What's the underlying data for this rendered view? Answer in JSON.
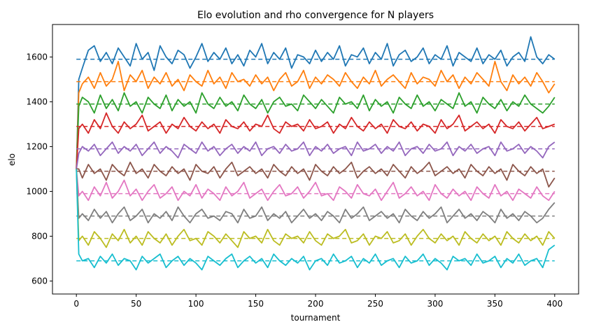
{
  "chart_data": {
    "type": "line",
    "title": "Elo evolution and rho convergence for N players",
    "xlabel": "tournament",
    "ylabel": "elo",
    "xlim": [
      -20,
      420
    ],
    "ylim": [
      542,
      1745
    ],
    "xticks": [
      0,
      50,
      100,
      150,
      200,
      250,
      300,
      350,
      400
    ],
    "yticks": [
      600,
      800,
      1000,
      1200,
      1400,
      1600
    ],
    "grid": false,
    "legend": "none",
    "start_value": 1100,
    "x": [
      0,
      2,
      5,
      10,
      15,
      20,
      25,
      30,
      35,
      40,
      45,
      50,
      55,
      60,
      65,
      70,
      75,
      80,
      85,
      90,
      95,
      100,
      105,
      110,
      115,
      120,
      125,
      130,
      135,
      140,
      145,
      150,
      155,
      160,
      165,
      170,
      175,
      180,
      185,
      190,
      195,
      200,
      205,
      210,
      215,
      220,
      225,
      230,
      235,
      240,
      245,
      250,
      255,
      260,
      265,
      270,
      275,
      280,
      285,
      290,
      295,
      300,
      305,
      310,
      315,
      320,
      325,
      330,
      335,
      340,
      345,
      350,
      355,
      360,
      365,
      370,
      375,
      380,
      385,
      390,
      395,
      400
    ],
    "series": [
      {
        "color": "#1f77b4",
        "equilibrium": 1590,
        "values": [
          1100,
          1500,
          1550,
          1630,
          1650,
          1580,
          1620,
          1570,
          1640,
          1600,
          1560,
          1660,
          1590,
          1620,
          1540,
          1650,
          1600,
          1570,
          1630,
          1610,
          1550,
          1600,
          1660,
          1580,
          1620,
          1590,
          1640,
          1570,
          1610,
          1560,
          1630,
          1600,
          1660,
          1570,
          1620,
          1590,
          1640,
          1550,
          1610,
          1600,
          1570,
          1630,
          1580,
          1620,
          1590,
          1650,
          1560,
          1610,
          1600,
          1640,
          1570,
          1620,
          1590,
          1660,
          1560,
          1610,
          1630,
          1580,
          1600,
          1640,
          1570,
          1610,
          1590,
          1650,
          1560,
          1620,
          1600,
          1580,
          1640,
          1570,
          1610,
          1590,
          1630,
          1560,
          1600,
          1620,
          1580,
          1690,
          1600,
          1570,
          1610,
          1590
        ]
      },
      {
        "color": "#ff7f0e",
        "equilibrium": 1490,
        "values": [
          1100,
          1440,
          1480,
          1510,
          1460,
          1530,
          1470,
          1500,
          1580,
          1450,
          1520,
          1490,
          1540,
          1460,
          1510,
          1480,
          1530,
          1470,
          1500,
          1450,
          1520,
          1490,
          1470,
          1540,
          1480,
          1510,
          1460,
          1530,
          1490,
          1500,
          1470,
          1520,
          1480,
          1510,
          1450,
          1500,
          1530,
          1470,
          1490,
          1540,
          1460,
          1510,
          1480,
          1520,
          1500,
          1470,
          1530,
          1490,
          1460,
          1510,
          1480,
          1540,
          1470,
          1500,
          1520,
          1490,
          1460,
          1530,
          1480,
          1510,
          1500,
          1470,
          1540,
          1490,
          1520,
          1460,
          1510,
          1480,
          1530,
          1500,
          1470,
          1580,
          1490,
          1450,
          1520,
          1480,
          1510,
          1470,
          1530,
          1490,
          1440,
          1480
        ]
      },
      {
        "color": "#2ca02c",
        "equilibrium": 1390,
        "values": [
          1100,
          1380,
          1420,
          1400,
          1350,
          1430,
          1370,
          1410,
          1360,
          1440,
          1380,
          1400,
          1350,
          1420,
          1390,
          1370,
          1430,
          1360,
          1410,
          1380,
          1400,
          1350,
          1440,
          1390,
          1370,
          1420,
          1380,
          1400,
          1360,
          1430,
          1390,
          1370,
          1410,
          1350,
          1400,
          1420,
          1380,
          1390,
          1360,
          1430,
          1400,
          1370,
          1410,
          1380,
          1350,
          1420,
          1390,
          1400,
          1370,
          1430,
          1360,
          1410,
          1380,
          1400,
          1350,
          1420,
          1390,
          1370,
          1430,
          1380,
          1400,
          1360,
          1410,
          1390,
          1370,
          1440,
          1380,
          1400,
          1350,
          1420,
          1390,
          1370,
          1410,
          1360,
          1400,
          1380,
          1430,
          1390,
          1370,
          1350,
          1380,
          1420
        ]
      },
      {
        "color": "#d62728",
        "equilibrium": 1290,
        "values": [
          1100,
          1280,
          1300,
          1260,
          1320,
          1280,
          1350,
          1290,
          1260,
          1310,
          1280,
          1300,
          1340,
          1270,
          1290,
          1310,
          1260,
          1300,
          1280,
          1330,
          1290,
          1270,
          1310,
          1280,
          1300,
          1260,
          1320,
          1290,
          1280,
          1310,
          1270,
          1300,
          1290,
          1340,
          1280,
          1260,
          1310,
          1290,
          1300,
          1270,
          1320,
          1280,
          1290,
          1310,
          1260,
          1300,
          1280,
          1330,
          1290,
          1270,
          1310,
          1280,
          1300,
          1260,
          1320,
          1290,
          1280,
          1310,
          1270,
          1300,
          1290,
          1260,
          1320,
          1280,
          1300,
          1340,
          1270,
          1290,
          1310,
          1280,
          1300,
          1260,
          1320,
          1290,
          1280,
          1310,
          1270,
          1300,
          1330,
          1280,
          1290,
          1300
        ]
      },
      {
        "color": "#9467bd",
        "equilibrium": 1190,
        "values": [
          1100,
          1170,
          1200,
          1180,
          1210,
          1160,
          1190,
          1220,
          1170,
          1200,
          1180,
          1210,
          1160,
          1190,
          1220,
          1170,
          1200,
          1180,
          1150,
          1210,
          1190,
          1170,
          1220,
          1180,
          1200,
          1160,
          1190,
          1210,
          1170,
          1200,
          1180,
          1220,
          1160,
          1190,
          1200,
          1170,
          1210,
          1180,
          1190,
          1220,
          1160,
          1200,
          1180,
          1210,
          1170,
          1190,
          1200,
          1160,
          1220,
          1180,
          1190,
          1210,
          1170,
          1200,
          1180,
          1220,
          1160,
          1190,
          1200,
          1170,
          1210,
          1180,
          1190,
          1220,
          1160,
          1200,
          1180,
          1210,
          1170,
          1190,
          1200,
          1160,
          1220,
          1180,
          1190,
          1210,
          1170,
          1200,
          1180,
          1150,
          1200,
          1220
        ]
      },
      {
        "color": "#8c564b",
        "equilibrium": 1090,
        "values": [
          1100,
          1100,
          1060,
          1120,
          1080,
          1100,
          1050,
          1120,
          1090,
          1070,
          1130,
          1080,
          1100,
          1060,
          1120,
          1090,
          1070,
          1110,
          1080,
          1100,
          1050,
          1120,
          1090,
          1080,
          1110,
          1060,
          1100,
          1130,
          1070,
          1090,
          1110,
          1080,
          1100,
          1060,
          1120,
          1090,
          1070,
          1110,
          1080,
          1100,
          1050,
          1120,
          1090,
          1070,
          1110,
          1080,
          1100,
          1130,
          1060,
          1090,
          1110,
          1080,
          1100,
          1070,
          1120,
          1090,
          1060,
          1110,
          1080,
          1100,
          1130,
          1070,
          1090,
          1110,
          1080,
          1100,
          1060,
          1120,
          1090,
          1070,
          1110,
          1080,
          1100,
          1050,
          1120,
          1090,
          1070,
          1110,
          1080,
          1100,
          1020,
          1060
        ]
      },
      {
        "color": "#e377c2",
        "equilibrium": 990,
        "values": [
          1100,
          980,
          1000,
          960,
          1020,
          980,
          1040,
          970,
          1000,
          1050,
          980,
          1010,
          960,
          1000,
          1030,
          970,
          990,
          1020,
          960,
          1000,
          980,
          1030,
          970,
          1010,
          990,
          960,
          1020,
          980,
          1000,
          1040,
          970,
          990,
          1010,
          960,
          1000,
          1030,
          980,
          990,
          1020,
          970,
          1000,
          1040,
          980,
          990,
          960,
          1020,
          1000,
          970,
          1030,
          990,
          980,
          1010,
          960,
          1000,
          1040,
          970,
          990,
          1020,
          980,
          1000,
          960,
          1030,
          990,
          970,
          1010,
          980,
          1000,
          960,
          1020,
          990,
          970,
          1030,
          980,
          1000,
          960,
          1010,
          990,
          970,
          1020,
          980,
          960,
          1000
        ]
      },
      {
        "color": "#7f7f7f",
        "equilibrium": 890,
        "values": [
          1100,
          880,
          900,
          870,
          920,
          880,
          910,
          860,
          900,
          930,
          870,
          890,
          920,
          860,
          900,
          880,
          910,
          870,
          930,
          890,
          860,
          900,
          920,
          880,
          890,
          870,
          910,
          900,
          860,
          920,
          880,
          890,
          930,
          870,
          900,
          880,
          910,
          860,
          890,
          920,
          880,
          900,
          870,
          910,
          890,
          860,
          920,
          880,
          900,
          930,
          870,
          890,
          910,
          880,
          900,
          860,
          920,
          890,
          870,
          910,
          880,
          900,
          930,
          860,
          890,
          920,
          880,
          900,
          870,
          910,
          890,
          860,
          920,
          880,
          900,
          870,
          910,
          890,
          860,
          880,
          920,
          950
        ]
      },
      {
        "color": "#bcbd22",
        "equilibrium": 790,
        "values": [
          1100,
          780,
          800,
          760,
          820,
          790,
          750,
          810,
          780,
          830,
          770,
          800,
          760,
          820,
          790,
          770,
          810,
          760,
          800,
          830,
          780,
          790,
          760,
          820,
          800,
          770,
          810,
          780,
          750,
          820,
          790,
          800,
          770,
          830,
          780,
          760,
          810,
          790,
          800,
          770,
          820,
          780,
          760,
          810,
          790,
          800,
          830,
          770,
          780,
          810,
          760,
          800,
          790,
          820,
          770,
          780,
          810,
          760,
          800,
          830,
          790,
          770,
          810,
          780,
          800,
          760,
          820,
          790,
          770,
          810,
          780,
          800,
          760,
          820,
          790,
          770,
          810,
          780,
          800,
          760,
          820,
          790
        ]
      },
      {
        "color": "#17becf",
        "equilibrium": 690,
        "values": [
          1100,
          720,
          690,
          700,
          660,
          710,
          680,
          720,
          670,
          700,
          690,
          650,
          710,
          680,
          700,
          720,
          660,
          690,
          710,
          670,
          700,
          680,
          650,
          710,
          690,
          670,
          700,
          720,
          660,
          690,
          710,
          680,
          700,
          660,
          720,
          690,
          670,
          700,
          680,
          710,
          650,
          690,
          700,
          670,
          720,
          680,
          690,
          710,
          660,
          700,
          680,
          720,
          670,
          690,
          700,
          660,
          710,
          680,
          690,
          720,
          670,
          700,
          680,
          650,
          710,
          690,
          700,
          670,
          720,
          680,
          690,
          710,
          660,
          700,
          680,
          720,
          670,
          690,
          700,
          660,
          740,
          760
        ]
      }
    ]
  }
}
